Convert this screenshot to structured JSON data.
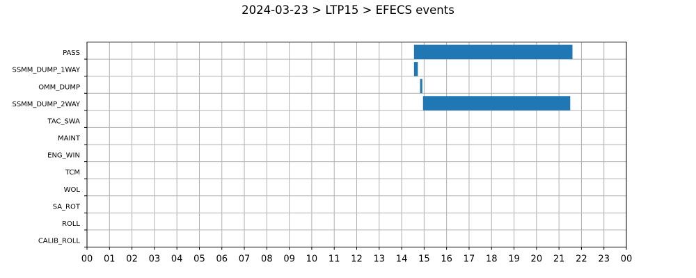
{
  "chart_data": {
    "type": "gantt",
    "title": "2024-03-23 > LTP15 > EFECS events",
    "x_tick_labels": [
      "00",
      "01",
      "02",
      "03",
      "04",
      "05",
      "06",
      "07",
      "08",
      "09",
      "10",
      "11",
      "12",
      "13",
      "14",
      "15",
      "16",
      "17",
      "18",
      "19",
      "20",
      "21",
      "22",
      "23",
      "00"
    ],
    "xlim_hours": [
      0,
      24
    ],
    "categories": [
      "PASS",
      "SSMM_DUMP_1WAY",
      "OMM_DUMP",
      "SSMM_DUMP_2WAY",
      "TAC_SWA",
      "MAINT",
      "ENG_WIN",
      "TCM",
      "WOL",
      "SA_ROT",
      "ROLL",
      "CALIB_ROLL"
    ],
    "events": [
      {
        "category": "PASS",
        "start_hour": 14.55,
        "end_hour": 21.6
      },
      {
        "category": "SSMM_DUMP_1WAY",
        "start_hour": 14.55,
        "end_hour": 14.72
      },
      {
        "category": "OMM_DUMP",
        "start_hour": 14.82,
        "end_hour": 14.92
      },
      {
        "category": "SSMM_DUMP_2WAY",
        "start_hour": 14.95,
        "end_hour": 21.5
      }
    ],
    "bar_color": "#1f77b4",
    "grid": true
  }
}
